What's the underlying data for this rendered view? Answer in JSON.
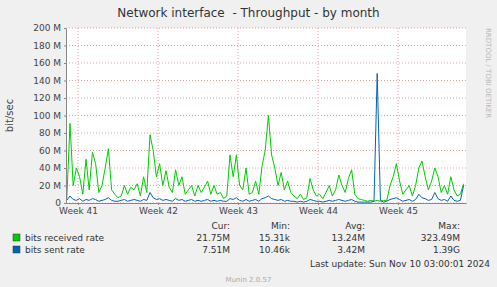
{
  "chart_data": {
    "type": "line",
    "title": "Network interface  - Throughput - by month",
    "y_label": "bit/sec",
    "side_text": "RRDTOOL / TOBI OETIKER",
    "footer": "Last update: Sun Nov 10 03:00:01 2024",
    "credit": "Munin 2.0.57",
    "legend": "bottom",
    "grid": true,
    "xlim": [
      40.85,
      45.85
    ],
    "xticks": [
      {
        "value": 41,
        "label": "Week 41"
      },
      {
        "value": 42,
        "label": "Week 42"
      },
      {
        "value": 43,
        "label": "Week 43"
      },
      {
        "value": 44,
        "label": "Week 44"
      },
      {
        "value": 45,
        "label": "Week 45"
      }
    ],
    "ylim": [
      0,
      200000000
    ],
    "yticks": [
      0,
      {
        "value": 20000000,
        "label": "20 M"
      },
      {
        "value": 40000000,
        "label": "40 M"
      },
      {
        "value": 60000000,
        "label": "60 M"
      },
      {
        "value": 80000000,
        "label": "80 M"
      },
      {
        "value": 100000000,
        "label": "100 M"
      },
      {
        "value": 120000000,
        "label": "120 M"
      },
      {
        "value": 140000000,
        "label": "140 M"
      },
      {
        "value": 160000000,
        "label": "160 M"
      },
      {
        "value": 180000000,
        "label": "180 M"
      },
      {
        "value": 200000000,
        "label": "200 M"
      }
    ],
    "stat_headers": [
      "Cur:",
      "Min:",
      "Avg:",
      "Max:"
    ],
    "x": [
      40.86,
      40.9,
      40.94,
      40.98,
      41.02,
      41.06,
      41.1,
      41.14,
      41.18,
      41.22,
      41.26,
      41.3,
      41.34,
      41.38,
      41.42,
      41.46,
      41.5,
      41.54,
      41.58,
      41.62,
      41.66,
      41.7,
      41.74,
      41.78,
      41.82,
      41.86,
      41.9,
      41.94,
      41.98,
      42.02,
      42.06,
      42.1,
      42.14,
      42.18,
      42.22,
      42.26,
      42.3,
      42.34,
      42.38,
      42.42,
      42.46,
      42.5,
      42.54,
      42.58,
      42.62,
      42.66,
      42.7,
      42.74,
      42.78,
      42.82,
      42.86,
      42.9,
      42.94,
      42.98,
      43.02,
      43.06,
      43.1,
      43.14,
      43.18,
      43.22,
      43.26,
      43.3,
      43.34,
      43.38,
      43.42,
      43.46,
      43.5,
      43.54,
      43.58,
      43.62,
      43.66,
      43.7,
      43.74,
      43.78,
      43.82,
      43.86,
      43.9,
      43.94,
      43.98,
      44.02,
      44.06,
      44.1,
      44.14,
      44.18,
      44.22,
      44.26,
      44.3,
      44.34,
      44.38,
      44.42,
      44.46,
      44.5,
      44.54,
      44.58,
      44.62,
      44.66,
      44.7,
      44.74,
      44.78,
      44.82,
      44.86,
      44.9,
      44.94,
      44.98,
      45.02,
      45.06,
      45.1,
      45.14,
      45.18,
      45.22,
      45.26,
      45.3,
      45.34,
      45.38,
      45.42,
      45.46,
      45.5,
      45.54,
      45.58,
      45.62,
      45.66,
      45.7,
      45.74,
      45.78,
      45.82
    ],
    "series": [
      {
        "name": "bits received rate",
        "color": "#00cc00",
        "stats": [
          "21.75M",
          "15.31k",
          "13.24M",
          "323.49M"
        ],
        "values": [
          5000000,
          91000000,
          20000000,
          40000000,
          30000000,
          10000000,
          50000000,
          15000000,
          58000000,
          45000000,
          12000000,
          20000000,
          40000000,
          62000000,
          15000000,
          10000000,
          6000000,
          8000000,
          20000000,
          10000000,
          18000000,
          15000000,
          22000000,
          8000000,
          30000000,
          12000000,
          78000000,
          60000000,
          30000000,
          45000000,
          20000000,
          37000000,
          18000000,
          12000000,
          38000000,
          20000000,
          30000000,
          10000000,
          15000000,
          20000000,
          8000000,
          20000000,
          12000000,
          18000000,
          25000000,
          10000000,
          20000000,
          10000000,
          12000000,
          5000000,
          8000000,
          55000000,
          30000000,
          55000000,
          20000000,
          15000000,
          40000000,
          10000000,
          12000000,
          25000000,
          10000000,
          42000000,
          60000000,
          100000000,
          55000000,
          40000000,
          20000000,
          35000000,
          15000000,
          25000000,
          12000000,
          8000000,
          5000000,
          10000000,
          4000000,
          6000000,
          28000000,
          15000000,
          8000000,
          10000000,
          5000000,
          12000000,
          20000000,
          8000000,
          15000000,
          32000000,
          20000000,
          12000000,
          28000000,
          38000000,
          10000000,
          5000000,
          4000000,
          3000000,
          2000000,
          3000000,
          2000000,
          3000000,
          2000000,
          3000000,
          3000000,
          20000000,
          30000000,
          45000000,
          25000000,
          10000000,
          15000000,
          20000000,
          8000000,
          20000000,
          40000000,
          48000000,
          30000000,
          15000000,
          25000000,
          40000000,
          30000000,
          12000000,
          20000000,
          10000000,
          30000000,
          15000000,
          8000000,
          10000000,
          22000000
        ]
      },
      {
        "name": "bits sent rate",
        "color": "#0066b3",
        "stats": [
          "7.51M",
          "10.46k",
          "3.42M",
          "1.39G"
        ],
        "values": [
          3000000,
          8000000,
          4000000,
          3000000,
          5000000,
          2000000,
          4000000,
          3000000,
          5000000,
          4000000,
          2000000,
          3000000,
          4000000,
          6000000,
          3000000,
          2000000,
          2000000,
          3000000,
          4000000,
          2000000,
          3000000,
          4000000,
          3000000,
          2000000,
          4000000,
          3000000,
          12000000,
          6000000,
          4000000,
          5000000,
          3000000,
          4000000,
          3000000,
          2000000,
          5000000,
          3000000,
          4000000,
          2000000,
          3000000,
          4000000,
          2000000,
          3000000,
          2000000,
          3000000,
          4000000,
          2000000,
          3000000,
          2000000,
          3000000,
          2000000,
          2000000,
          5000000,
          4000000,
          6000000,
          3000000,
          2000000,
          4000000,
          2000000,
          3000000,
          4000000,
          2000000,
          5000000,
          6000000,
          8000000,
          5000000,
          4000000,
          3000000,
          4000000,
          2000000,
          3000000,
          2000000,
          2000000,
          1000000,
          2000000,
          1000000,
          2000000,
          4000000,
          3000000,
          2000000,
          2000000,
          1000000,
          2000000,
          3000000,
          2000000,
          3000000,
          4000000,
          3000000,
          2000000,
          3000000,
          4000000,
          2000000,
          1000000,
          1000000,
          1000000,
          1000000,
          1000000,
          2000000,
          148000000,
          3000000,
          1000000,
          2000000,
          4000000,
          5000000,
          6000000,
          4000000,
          2000000,
          3000000,
          4000000,
          2000000,
          4000000,
          10000000,
          6000000,
          5000000,
          3000000,
          4000000,
          12000000,
          5000000,
          3000000,
          4000000,
          2000000,
          8000000,
          3000000,
          2000000,
          3000000,
          20000000
        ]
      }
    ]
  }
}
